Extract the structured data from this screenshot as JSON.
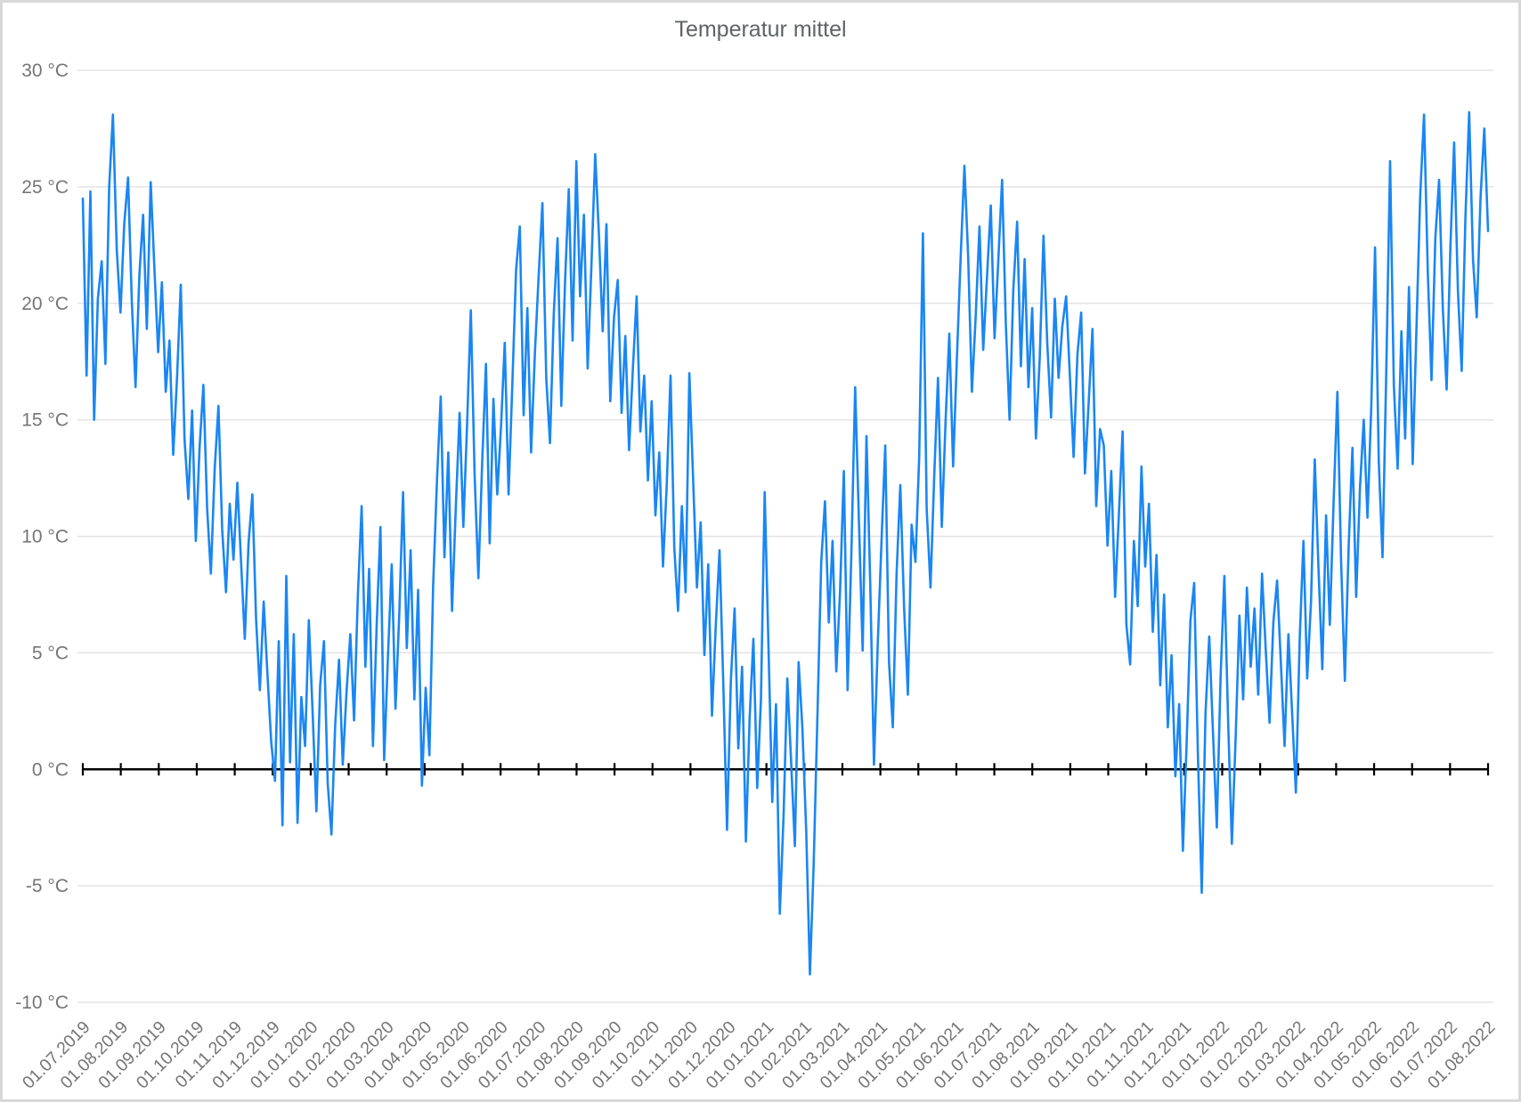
{
  "title": "Temperatur mittel",
  "chart_data": {
    "type": "line",
    "title": "Temperatur mittel",
    "xlabel": "",
    "ylabel": "",
    "legend": "none",
    "grid": "horizontal-only",
    "ylim": [
      -10,
      30
    ],
    "y_tick_step": 5,
    "baseline_value": 0,
    "x_start": "01.07.2019",
    "x_end": "01.08.2022",
    "interval_days": 3,
    "grid_color": "#e3e3e3",
    "text_color": "#757575",
    "axis_color": "#000000",
    "y_ticks": [
      {
        "label": "30 °C",
        "value": 30
      },
      {
        "label": "25 °C",
        "value": 25
      },
      {
        "label": "20 °C",
        "value": 20
      },
      {
        "label": "15 °C",
        "value": 15
      },
      {
        "label": "10 °C",
        "value": 10
      },
      {
        "label": "5 °C",
        "value": 5
      },
      {
        "label": "0 °C",
        "value": 0
      },
      {
        "label": "-5 °C",
        "value": -5
      },
      {
        "label": "-10 °C",
        "value": -10
      }
    ],
    "x_tick_labels": [
      "01.07.2019",
      "01.08.2019",
      "01.09.2019",
      "01.10.2019",
      "01.11.2019",
      "01.12.2019",
      "01.01.2020",
      "01.02.2020",
      "01.03.2020",
      "01.04.2020",
      "01.05.2020",
      "01.06.2020",
      "01.07.2020",
      "01.08.2020",
      "01.09.2020",
      "01.10.2020",
      "01.11.2020",
      "01.12.2020",
      "01.01.2021",
      "01.02.2021",
      "01.03.2021",
      "01.04.2021",
      "01.05.2021",
      "01.06.2021",
      "01.07.2021",
      "01.08.2021",
      "01.09.2021",
      "01.10.2021",
      "01.11.2021",
      "01.12.2021",
      "01.01.2022",
      "01.02.2022",
      "01.03.2022",
      "01.04.2022",
      "01.05.2022",
      "01.06.2022",
      "01.07.2022",
      "01.08.2022"
    ],
    "series": [
      {
        "name": "Temperatur mittel",
        "color": "#1a86f3",
        "values": [
          24.5,
          16.9,
          24.8,
          15.0,
          20.2,
          21.8,
          17.4,
          25.0,
          28.1,
          22.3,
          19.6,
          23.4,
          25.4,
          20.1,
          16.4,
          21.2,
          23.8,
          18.9,
          25.2,
          21.5,
          17.9,
          20.9,
          16.2,
          18.4,
          13.5,
          16.8,
          20.8,
          14.2,
          11.6,
          15.4,
          9.8,
          13.8,
          16.5,
          11.2,
          8.4,
          12.9,
          15.6,
          10.3,
          7.6,
          11.4,
          9.0,
          12.3,
          8.9,
          5.6,
          9.7,
          11.8,
          6.4,
          3.4,
          7.2,
          4.1,
          1.2,
          -0.5,
          5.5,
          -2.4,
          8.3,
          0.3,
          5.8,
          -2.3,
          3.1,
          1.0,
          6.4,
          2.4,
          -1.8,
          3.6,
          5.5,
          -0.6,
          -2.8,
          1.9,
          4.7,
          0.2,
          3.3,
          5.8,
          2.1,
          7.4,
          11.3,
          4.4,
          8.6,
          1.0,
          6.2,
          10.4,
          0.4,
          4.9,
          8.8,
          2.6,
          6.7,
          11.9,
          5.2,
          9.4,
          3.0,
          7.7,
          -0.7,
          3.5,
          0.6,
          7.9,
          12.4,
          16.0,
          9.1,
          13.6,
          6.8,
          11.2,
          15.3,
          10.4,
          14.8,
          19.7,
          12.6,
          8.2,
          13.1,
          17.4,
          9.7,
          15.9,
          11.8,
          14.7,
          18.3,
          11.8,
          16.5,
          21.4,
          23.3,
          15.2,
          19.8,
          13.6,
          17.9,
          21.2,
          24.3,
          16.8,
          14.0,
          19.5,
          22.8,
          15.6,
          20.9,
          24.9,
          18.4,
          26.1,
          20.3,
          23.8,
          17.2,
          21.6,
          26.4,
          22.9,
          18.8,
          23.4,
          15.8,
          19.4,
          21.0,
          15.3,
          18.6,
          13.7,
          17.2,
          20.3,
          14.5,
          16.9,
          12.4,
          15.8,
          10.9,
          13.6,
          8.7,
          12.2,
          16.9,
          9.5,
          6.8,
          11.3,
          7.6,
          17.0,
          12.4,
          7.8,
          10.6,
          4.9,
          8.8,
          2.3,
          6.1,
          9.4,
          3.7,
          -2.6,
          3.8,
          6.9,
          0.9,
          4.4,
          -3.1,
          2.2,
          5.6,
          -0.8,
          3.0,
          11.9,
          5.2,
          -1.4,
          2.8,
          -6.2,
          -2.0,
          3.9,
          0.4,
          -3.3,
          4.6,
          1.8,
          -2.6,
          -8.8,
          -4.1,
          2.4,
          8.9,
          11.5,
          6.3,
          9.8,
          4.2,
          7.6,
          12.8,
          3.4,
          9.2,
          16.4,
          10.7,
          5.1,
          14.3,
          8.0,
          0.2,
          5.3,
          9.8,
          13.9,
          4.6,
          1.8,
          8.4,
          12.2,
          6.9,
          3.2,
          10.5,
          8.9,
          13.4,
          23.0,
          11.2,
          7.8,
          12.6,
          16.8,
          10.4,
          14.9,
          18.7,
          13.0,
          17.6,
          21.9,
          25.9,
          22.0,
          16.2,
          19.4,
          23.3,
          18.0,
          21.1,
          24.2,
          18.5,
          21.8,
          25.3,
          19.1,
          15.0,
          20.6,
          23.5,
          17.3,
          21.9,
          16.4,
          19.8,
          14.2,
          17.7,
          22.9,
          18.3,
          15.1,
          20.2,
          16.8,
          19.0,
          20.3,
          16.9,
          13.4,
          17.8,
          19.6,
          12.7,
          15.8,
          18.9,
          11.3,
          14.6,
          13.9,
          9.6,
          12.8,
          7.4,
          10.9,
          14.5,
          6.2,
          4.5,
          9.8,
          7.0,
          13.0,
          8.7,
          11.4,
          5.9,
          9.2,
          3.6,
          7.5,
          1.8,
          4.9,
          -0.3,
          2.8,
          -3.5,
          1.2,
          6.4,
          8.0,
          0.6,
          -5.3,
          2.4,
          5.7,
          1.5,
          -2.5,
          3.9,
          8.3,
          2.1,
          -3.2,
          1.4,
          6.6,
          3.0,
          7.8,
          4.4,
          6.9,
          3.2,
          8.4,
          5.1,
          2.0,
          6.3,
          8.1,
          4.6,
          1.0,
          5.8,
          2.4,
          -1.0,
          5.6,
          9.8,
          3.9,
          7.2,
          13.3,
          8.6,
          4.3,
          10.9,
          6.2,
          11.4,
          16.2,
          8.9,
          3.8,
          9.6,
          13.8,
          7.4,
          12.1,
          15.0,
          10.8,
          15.6,
          22.4,
          13.2,
          9.1,
          17.3,
          26.1,
          16.5,
          12.9,
          18.8,
          14.2,
          20.7,
          13.1,
          18.9,
          24.6,
          28.1,
          21.4,
          16.7,
          22.8,
          25.3,
          19.8,
          16.3,
          22.4,
          26.9,
          20.5,
          17.1,
          23.7,
          28.2,
          21.9,
          19.4,
          24.5,
          27.5,
          23.1
        ]
      }
    ]
  }
}
